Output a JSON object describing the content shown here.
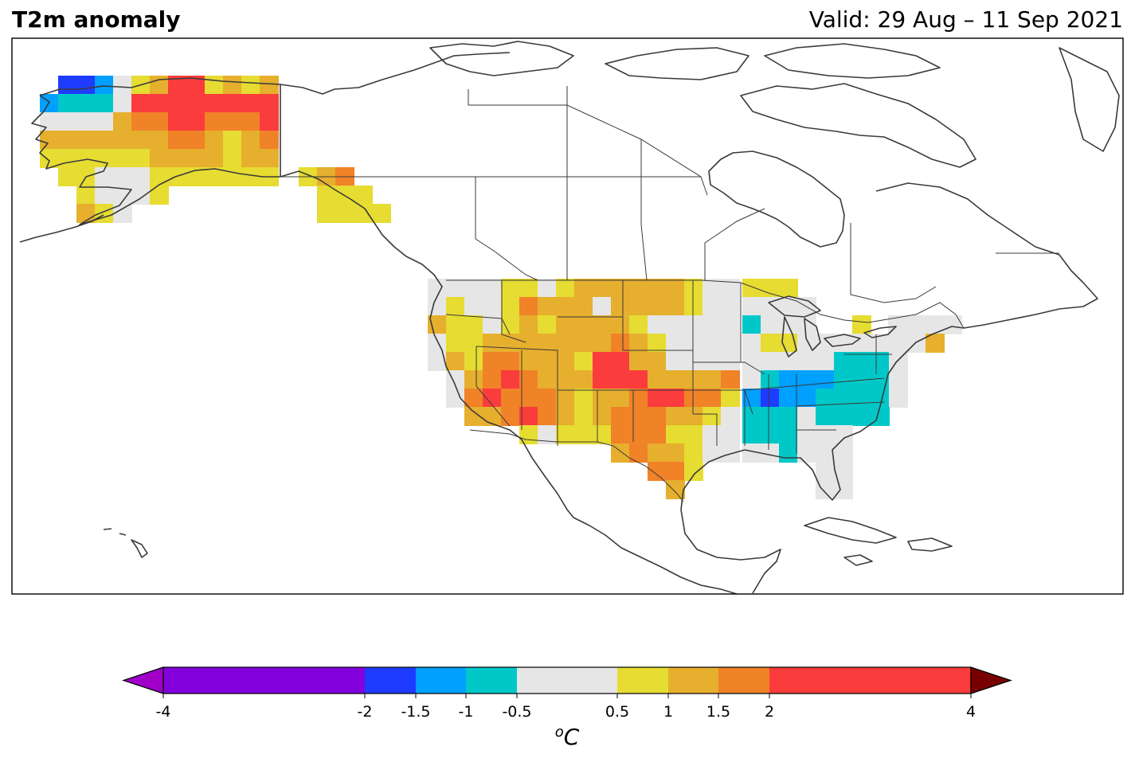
{
  "header": {
    "title": "T2m anomaly",
    "valid": "Valid: 29 Aug – 11 Sep 2021"
  },
  "colorbar": {
    "unit_prefix": "o",
    "unit": "C",
    "bins": [
      {
        "from": -4,
        "to": -2,
        "color": "#8200dc"
      },
      {
        "from": -2,
        "to": -1.5,
        "color": "#1e3cff"
      },
      {
        "from": -1.5,
        "to": -1,
        "color": "#00a0ff"
      },
      {
        "from": -1,
        "to": -0.5,
        "color": "#00c8c8"
      },
      {
        "from": -0.5,
        "to": 0.5,
        "color": "#e6e6e6"
      },
      {
        "from": 0.5,
        "to": 1,
        "color": "#e6dc32"
      },
      {
        "from": 1,
        "to": 1.5,
        "color": "#e6af2d"
      },
      {
        "from": 1.5,
        "to": 2,
        "color": "#f08228"
      },
      {
        "from": 2,
        "to": 4,
        "color": "#fa3c3c"
      }
    ],
    "under_color": "#a000c8",
    "over_color": "#780000",
    "tick_labels": [
      "-4",
      "-2",
      "-1.5",
      "-1",
      "-0.5",
      "0.5",
      "1",
      "1.5",
      "2",
      "4"
    ]
  }
}
